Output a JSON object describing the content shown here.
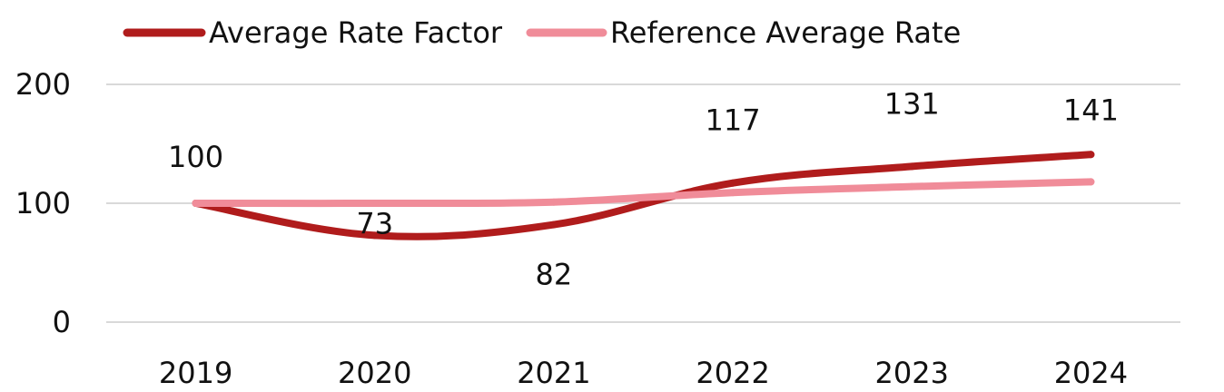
{
  "chart_data": {
    "type": "line",
    "title": "",
    "xlabel": "",
    "ylabel": "",
    "categories": [
      "2019",
      "2020",
      "2021",
      "2022",
      "2023",
      "2024"
    ],
    "ylim": [
      0,
      200
    ],
    "yticks": [
      "0",
      "100",
      "200"
    ],
    "grid": true,
    "legend_position": "top",
    "series": [
      {
        "name": "Average Rate Factor",
        "values": [
          100,
          73,
          82,
          117,
          131,
          141
        ],
        "data_labels": [
          "100",
          "73",
          "82",
          "117",
          "131",
          "141"
        ],
        "color": "#B01C1C"
      },
      {
        "name": "Reference Average Rate",
        "values": [
          100,
          100,
          101,
          109,
          114,
          118
        ],
        "color": "#F08C99"
      }
    ]
  }
}
